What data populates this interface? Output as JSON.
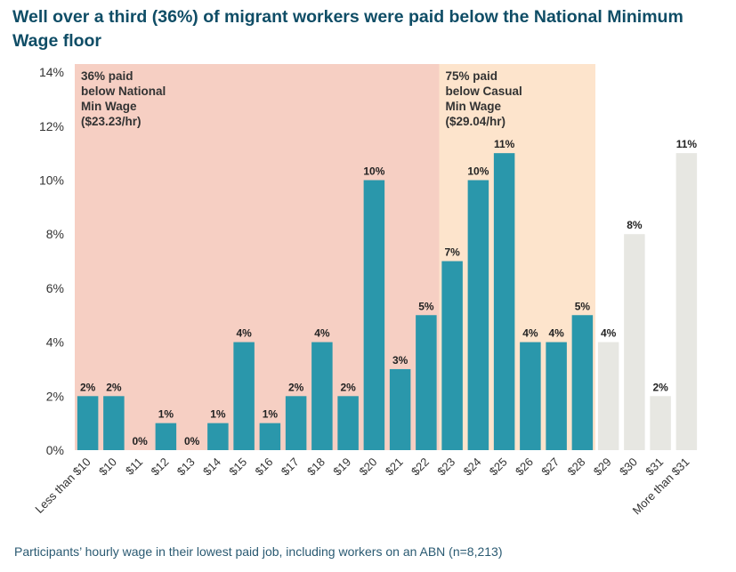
{
  "title": "Well over a third (36%) of migrant workers were paid below the National Minimum Wage floor",
  "caption": "Participants’ hourly wage in their lowest paid job, including workers on an ABN (n=8,213)",
  "chart_data": {
    "type": "bar",
    "categories": [
      "Less than $10",
      "$10",
      "$11",
      "$12",
      "$13",
      "$14",
      "$15",
      "$16",
      "$17",
      "$18",
      "$19",
      "$20",
      "$21",
      "$22",
      "$23",
      "$24",
      "$25",
      "$26",
      "$27",
      "$28",
      "$29",
      "$30",
      "$31",
      "More than $31"
    ],
    "values": [
      2,
      2,
      0,
      1,
      0,
      1,
      4,
      1,
      2,
      4,
      2,
      10,
      3,
      5,
      7,
      10,
      11,
      4,
      4,
      5,
      4,
      8,
      2,
      11
    ],
    "value_labels": [
      "2%",
      "2%",
      "0%",
      "1%",
      "0%",
      "1%",
      "4%",
      "1%",
      "2%",
      "4%",
      "2%",
      "10%",
      "3%",
      "5%",
      "7%",
      "10%",
      "11%",
      "4%",
      "4%",
      "5%",
      "4%",
      "8%",
      "2%",
      "11%"
    ],
    "y_ticks": [
      "0%",
      "2%",
      "4%",
      "6%",
      "8%",
      "10%",
      "12%",
      "14%"
    ],
    "ylim": [
      0,
      14
    ],
    "colors": {
      "bar": "#2a97ab",
      "bar_muted": "#e7e7e2",
      "band_national": "#f6cfc3",
      "band_casual": "#fde4cc"
    },
    "regions": [
      {
        "from_category": 0,
        "to_category": 13,
        "color": "#f6cfc3",
        "label_lines": [
          "36% paid",
          "below National",
          "Min Wage",
          "($23.23/hr)"
        ]
      },
      {
        "from_category": 14,
        "to_category": 19,
        "color": "#fde4cc",
        "label_lines": [
          "75% paid",
          "below Casual",
          "Min Wage",
          "($29.04/hr)"
        ]
      }
    ],
    "highlight_until_category": 19
  }
}
